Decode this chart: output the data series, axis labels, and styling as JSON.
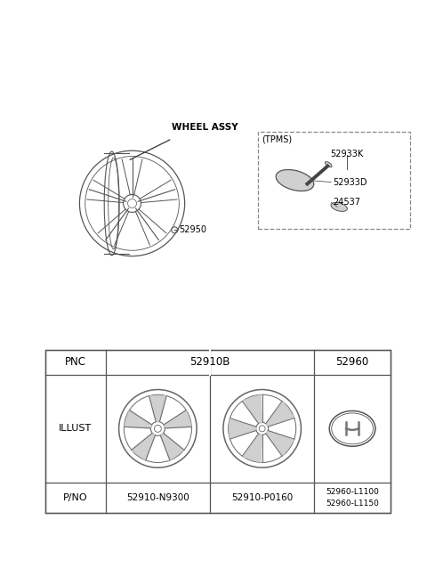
{
  "bg_color": "#ffffff",
  "wheel_label": "WHEEL ASSY",
  "part_52950": "52950",
  "tpms_label": "(TPMS)",
  "tpms_parts": [
    "52933K",
    "52933D",
    "24537"
  ],
  "table_pnc": [
    "PNC",
    "52910B",
    "52960"
  ],
  "table_illust": "ILLUST",
  "table_pno_label": "P/NO",
  "table_pno_values": [
    "52910-N9300",
    "52910-P0160",
    "52960-L1100\n52960-L1150"
  ],
  "colors": {
    "table_border": "#555555",
    "text": "#000000",
    "wheel_line": "#555555",
    "tpms_border": "#888888",
    "spoke_fill": "#c8c8c8",
    "spoke_line": "#666666"
  }
}
